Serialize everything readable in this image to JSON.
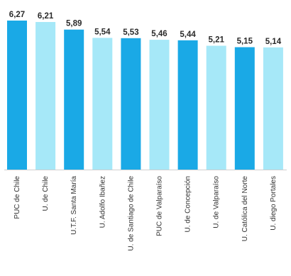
{
  "colors": {
    "dark_bar": "#1aa9e6",
    "light_bar": "#a6e8f8",
    "axis": "#cfcfcf"
  },
  "chart_data": {
    "type": "bar",
    "title": "",
    "xlabel": "",
    "ylabel": "",
    "ylim": [
      0,
      6.5
    ],
    "grid": false,
    "categories": [
      "PUC de Chile",
      "U. de Chile",
      "U.T.F. Santa María",
      "U. Adolfo Ibañez",
      "U. de Santiago de Chile",
      "PUC de Valparaíso",
      "U. de Concepción",
      "U. de Valparaíso",
      "U. Católica del Norte",
      "U. diego Portales"
    ],
    "values": [
      6.27,
      6.21,
      5.89,
      5.54,
      5.53,
      5.46,
      5.44,
      5.21,
      5.15,
      5.14
    ],
    "value_labels": [
      "6,27",
      "6,21",
      "5,89",
      "5,54",
      "5,53",
      "5,46",
      "5,44",
      "5,21",
      "5,15",
      "5,14"
    ],
    "bar_color_keys": [
      "dark_bar",
      "light_bar",
      "dark_bar",
      "light_bar",
      "dark_bar",
      "light_bar",
      "dark_bar",
      "light_bar",
      "dark_bar",
      "light_bar"
    ]
  }
}
